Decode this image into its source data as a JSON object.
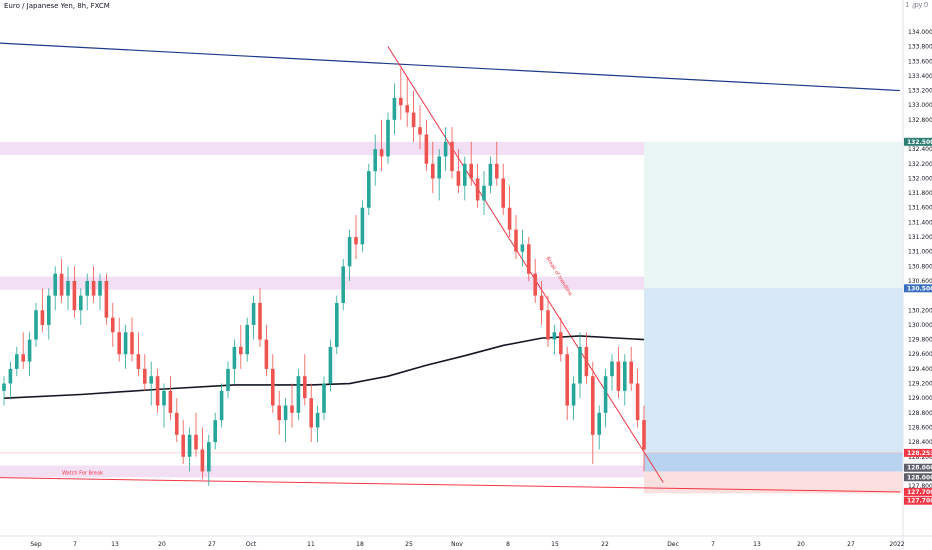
{
  "header": {
    "title": "Euro / Japanese Yen, 8h, FXCM",
    "corner_label": "1 ,jpy 0"
  },
  "colors": {
    "bull": "#26a69a",
    "bear": "#ef5350",
    "ma": "#131722",
    "zone": "#f3dff3",
    "downtrend": "#f23645",
    "upper_trend": "#1e3a8a",
    "profit": "#d6e8f6",
    "profit_top": "#e9f6f4",
    "stop": "#fbe0e0",
    "tag_teal": "#2e7d73",
    "tag_blue": "#3a6fbf",
    "tag_red": "#f23645",
    "tag_gray": "#5d606b"
  },
  "annotations": {
    "watch_for_break": "Watch For Break",
    "trendline_label": "Break of trendline"
  },
  "chart_data": {
    "type": "candlestick",
    "title": "Euro / Japanese Yen, 8h, FXCM",
    "ylim": [
      127.2,
      134.3
    ],
    "y_ticks": [
      "134.000",
      "133.800",
      "133.600",
      "133.400",
      "133.200",
      "133.000",
      "132.800",
      "132.400",
      "132.200",
      "132.000",
      "131.800",
      "131.600",
      "131.400",
      "131.200",
      "131.000",
      "130.800",
      "130.600",
      "130.200",
      "130.000",
      "129.800",
      "129.600",
      "129.400",
      "129.200",
      "129.000",
      "128.800",
      "128.600",
      "128.400",
      "128.200",
      "127.800"
    ],
    "x_ticks": [
      "Sep",
      "7",
      "13",
      "20",
      "27",
      "Oct",
      "11",
      "18",
      "25",
      "Nov",
      "8",
      "15",
      "22",
      "Dec",
      "7",
      "13",
      "20",
      "27",
      "2022"
    ],
    "ohlc": [
      [
        129.1,
        129.3,
        128.9,
        129.2
      ],
      [
        129.2,
        129.5,
        129.0,
        129.4
      ],
      [
        129.4,
        129.7,
        129.3,
        129.6
      ],
      [
        129.6,
        129.9,
        129.4,
        129.5
      ],
      [
        129.5,
        129.9,
        129.3,
        129.8
      ],
      [
        129.8,
        130.3,
        129.7,
        130.2
      ],
      [
        130.2,
        130.5,
        129.9,
        130.0
      ],
      [
        130.0,
        130.5,
        129.8,
        130.4
      ],
      [
        130.4,
        130.8,
        130.2,
        130.7
      ],
      [
        130.7,
        130.9,
        130.3,
        130.4
      ],
      [
        130.4,
        130.8,
        130.2,
        130.6
      ],
      [
        130.6,
        130.8,
        130.1,
        130.2
      ],
      [
        130.2,
        130.5,
        130.0,
        130.4
      ],
      [
        130.4,
        130.7,
        130.2,
        130.6
      ],
      [
        130.6,
        130.8,
        130.3,
        130.4
      ],
      [
        130.4,
        130.7,
        130.2,
        130.6
      ],
      [
        130.6,
        130.7,
        130.0,
        130.1
      ],
      [
        130.1,
        130.3,
        129.7,
        129.9
      ],
      [
        129.9,
        130.1,
        129.5,
        129.6
      ],
      [
        129.6,
        130.0,
        129.4,
        129.9
      ],
      [
        129.9,
        130.1,
        129.5,
        129.6
      ],
      [
        129.6,
        129.9,
        129.3,
        129.4
      ],
      [
        129.4,
        129.6,
        129.1,
        129.2
      ],
      [
        129.2,
        129.5,
        128.9,
        129.3
      ],
      [
        129.3,
        129.4,
        128.8,
        128.9
      ],
      [
        128.9,
        129.2,
        128.6,
        129.1
      ],
      [
        129.1,
        129.3,
        128.7,
        128.8
      ],
      [
        128.8,
        129.0,
        128.4,
        128.5
      ],
      [
        128.5,
        128.7,
        128.1,
        128.2
      ],
      [
        128.2,
        128.6,
        128.0,
        128.5
      ],
      [
        128.5,
        128.8,
        128.2,
        128.3
      ],
      [
        128.3,
        128.6,
        127.9,
        128.0
      ],
      [
        128.0,
        128.5,
        127.8,
        128.4
      ],
      [
        128.4,
        128.8,
        128.3,
        128.7
      ],
      [
        128.7,
        129.2,
        128.6,
        129.1
      ],
      [
        129.1,
        129.5,
        129.0,
        129.4
      ],
      [
        129.4,
        129.8,
        129.2,
        129.7
      ],
      [
        129.7,
        130.0,
        129.4,
        129.6
      ],
      [
        129.6,
        130.1,
        129.5,
        130.0
      ],
      [
        130.0,
        130.4,
        129.8,
        130.3
      ],
      [
        130.3,
        130.5,
        129.7,
        129.8
      ],
      [
        129.8,
        130.0,
        129.3,
        129.4
      ],
      [
        129.4,
        129.6,
        128.8,
        128.9
      ],
      [
        128.9,
        129.1,
        128.5,
        128.7
      ],
      [
        128.7,
        129.0,
        128.4,
        128.9
      ],
      [
        128.9,
        129.2,
        128.6,
        128.8
      ],
      [
        128.8,
        129.4,
        128.7,
        129.3
      ],
      [
        129.3,
        129.6,
        128.9,
        129.0
      ],
      [
        129.0,
        129.2,
        128.4,
        128.6
      ],
      [
        128.6,
        128.9,
        128.4,
        128.8
      ],
      [
        128.8,
        129.3,
        128.7,
        129.2
      ],
      [
        129.2,
        129.8,
        129.1,
        129.7
      ],
      [
        129.7,
        130.4,
        129.6,
        130.3
      ],
      [
        130.3,
        130.9,
        130.2,
        130.8
      ],
      [
        130.8,
        131.3,
        130.6,
        131.2
      ],
      [
        131.2,
        131.5,
        130.9,
        131.1
      ],
      [
        131.1,
        131.7,
        131.0,
        131.6
      ],
      [
        131.6,
        132.2,
        131.5,
        132.1
      ],
      [
        132.1,
        132.6,
        131.9,
        132.4
      ],
      [
        132.4,
        132.8,
        132.1,
        132.3
      ],
      [
        132.3,
        132.9,
        132.2,
        132.8
      ],
      [
        132.8,
        133.3,
        132.6,
        133.1
      ],
      [
        133.1,
        133.5,
        132.8,
        133.0
      ],
      [
        133.0,
        133.4,
        132.7,
        132.9
      ],
      [
        132.9,
        133.2,
        132.5,
        132.7
      ],
      [
        132.7,
        133.0,
        132.4,
        132.6
      ],
      [
        132.6,
        132.8,
        132.1,
        132.2
      ],
      [
        132.2,
        132.5,
        131.8,
        132.0
      ],
      [
        132.0,
        132.4,
        131.7,
        132.3
      ],
      [
        132.3,
        132.7,
        132.1,
        132.5
      ],
      [
        132.5,
        132.7,
        132.0,
        132.1
      ],
      [
        132.1,
        132.4,
        131.8,
        131.9
      ],
      [
        131.9,
        132.3,
        131.7,
        132.2
      ],
      [
        132.2,
        132.5,
        131.9,
        132.0
      ],
      [
        132.0,
        132.2,
        131.6,
        131.7
      ],
      [
        131.7,
        132.1,
        131.5,
        131.9
      ],
      [
        131.9,
        132.3,
        131.8,
        132.2
      ],
      [
        132.2,
        132.5,
        131.9,
        132.0
      ],
      [
        132.0,
        132.2,
        131.5,
        131.6
      ],
      [
        131.6,
        131.9,
        131.2,
        131.3
      ],
      [
        131.3,
        131.5,
        130.9,
        131.0
      ],
      [
        131.0,
        131.3,
        130.8,
        131.1
      ],
      [
        131.1,
        131.2,
        130.6,
        130.7
      ],
      [
        130.7,
        130.9,
        130.3,
        130.4
      ],
      [
        130.4,
        130.6,
        130.0,
        130.2
      ],
      [
        130.2,
        130.4,
        129.7,
        129.8
      ],
      [
        129.8,
        130.0,
        129.6,
        129.9
      ],
      [
        129.9,
        130.1,
        129.5,
        129.6
      ],
      [
        129.6,
        129.7,
        128.7,
        128.9
      ],
      [
        128.9,
        129.3,
        128.7,
        129.2
      ],
      [
        129.2,
        129.9,
        129.0,
        129.7
      ],
      [
        129.7,
        129.9,
        129.2,
        129.3
      ],
      [
        129.3,
        129.5,
        128.1,
        128.5
      ],
      [
        128.5,
        128.9,
        128.3,
        128.8
      ],
      [
        128.8,
        129.4,
        128.6,
        129.3
      ],
      [
        129.3,
        129.6,
        129.1,
        129.5
      ],
      [
        129.5,
        129.7,
        129.0,
        129.1
      ],
      [
        129.1,
        129.6,
        128.9,
        129.5
      ],
      [
        129.5,
        129.7,
        129.1,
        129.2
      ],
      [
        129.2,
        129.4,
        128.6,
        128.7
      ],
      [
        128.7,
        128.9,
        128.0,
        128.3
      ]
    ],
    "ma_200": [
      [
        0,
        129.0
      ],
      [
        12,
        129.05
      ],
      [
        24,
        129.12
      ],
      [
        36,
        129.18
      ],
      [
        48,
        129.18
      ],
      [
        54,
        129.2
      ],
      [
        60,
        129.3
      ],
      [
        66,
        129.45
      ],
      [
        72,
        129.58
      ],
      [
        78,
        129.72
      ],
      [
        84,
        129.82
      ],
      [
        90,
        129.85
      ],
      [
        96,
        129.82
      ],
      [
        100,
        129.8
      ]
    ],
    "support_zones": [
      {
        "top": 132.5,
        "bottom": 132.32
      },
      {
        "top": 130.66,
        "bottom": 130.48
      },
      {
        "top": 128.08,
        "bottom": 127.92
      }
    ],
    "trendlines": [
      {
        "name": "upper",
        "from": [
          -12,
          133.9
        ],
        "to": [
          140,
          133.2
        ]
      },
      {
        "name": "down",
        "from": [
          60,
          133.8
        ],
        "to": [
          103,
          127.85
        ]
      },
      {
        "name": "watch",
        "from": [
          -12,
          127.93
        ],
        "to": [
          140,
          127.72
        ]
      }
    ],
    "position": {
      "entry": 128.0,
      "target": 132.5,
      "stop": 127.7,
      "start_index": 100,
      "end_index": 140
    },
    "price_tags": [
      {
        "label": "132.500",
        "value": 132.5,
        "kind": "teal"
      },
      {
        "label": "130.500",
        "value": 130.5,
        "kind": "blue"
      },
      {
        "label": "128.253",
        "value": 128.253,
        "kind": "red"
      },
      {
        "label": "128.000",
        "value": 128.05,
        "kind": "gray"
      },
      {
        "label": "128.000",
        "value": 127.92,
        "kind": "gray"
      },
      {
        "label": "127.700",
        "value": 127.72,
        "kind": "red"
      },
      {
        "label": "127.700",
        "value": 127.6,
        "kind": "red"
      }
    ]
  }
}
